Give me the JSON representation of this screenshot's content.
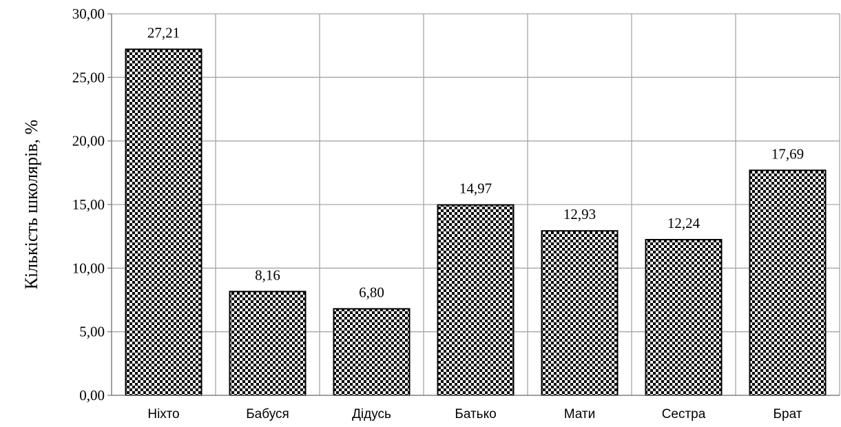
{
  "chart_data": {
    "type": "bar",
    "title": "",
    "xlabel": "",
    "ylabel": "Кількість школярів, %",
    "categories": [
      "Ніхто",
      "Бабуся",
      "Дідусь",
      "Батько",
      "Мати",
      "Сестра",
      "Брат"
    ],
    "values": [
      27.21,
      8.16,
      6.8,
      14.97,
      12.93,
      12.24,
      17.69
    ],
    "value_labels": [
      "27,21",
      "8,16",
      "6,80",
      "14,97",
      "12,93",
      "12,24",
      "17,69"
    ],
    "ylim": [
      0,
      30
    ],
    "yticks": [
      0,
      5,
      10,
      15,
      20,
      25,
      30
    ],
    "ytick_labels": [
      "0,00",
      "5,00",
      "10,00",
      "15,00",
      "20,00",
      "25,00",
      "30,00"
    ],
    "grid": true,
    "legend": "none",
    "bar_fill": "checkerboard",
    "colors": {
      "bar_dark": "#000000",
      "bar_light": "#ffffff",
      "grid": "#a6a6a6",
      "axis": "#808080"
    }
  }
}
